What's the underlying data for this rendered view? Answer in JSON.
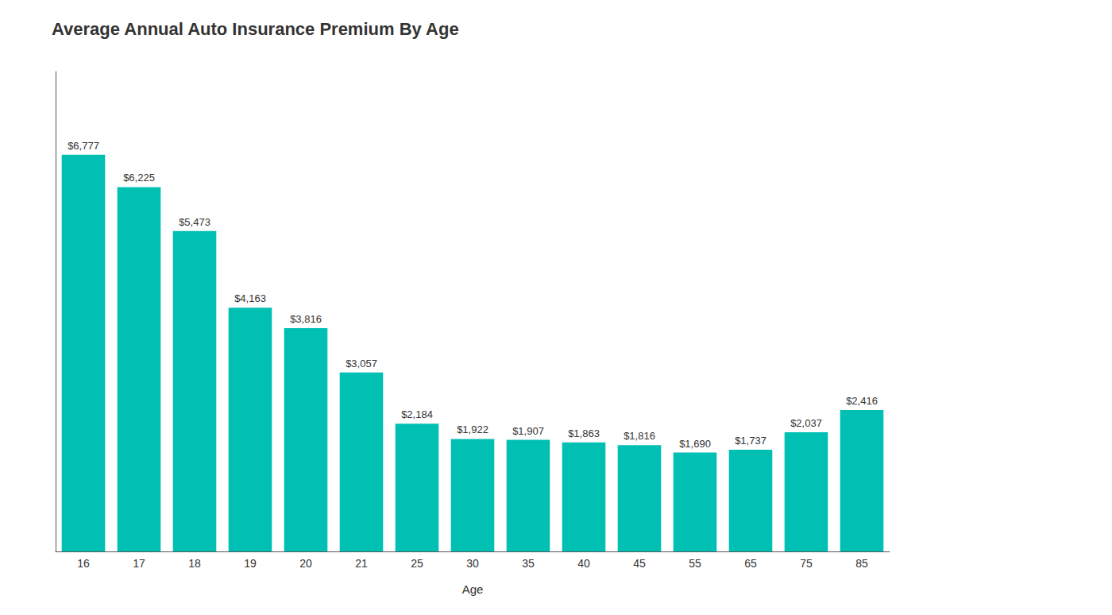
{
  "chart_data": {
    "type": "bar",
    "title": "Average Annual Auto Insurance Premium By Age",
    "xlabel": "Age",
    "categories": [
      "16",
      "17",
      "18",
      "19",
      "20",
      "21",
      "25",
      "30",
      "35",
      "40",
      "45",
      "55",
      "65",
      "75",
      "85"
    ],
    "values": [
      6777,
      6225,
      5473,
      4163,
      3816,
      3057,
      2184,
      1922,
      1907,
      1863,
      1816,
      1690,
      1737,
      2037,
      2416
    ],
    "value_labels": [
      "$6,777",
      "$6,225",
      "$5,473",
      "$4,163",
      "$3,816",
      "$3,057",
      "$2,184",
      "$1,922",
      "$1,907",
      "$1,863",
      "$1,816",
      "$1,690",
      "$1,737",
      "$2,037",
      "$2,416"
    ],
    "data_labels": true,
    "color": "#00BFB3",
    "ylim": [
      0,
      8200
    ],
    "yticks": [],
    "tick_labels": "x",
    "grid": false
  }
}
